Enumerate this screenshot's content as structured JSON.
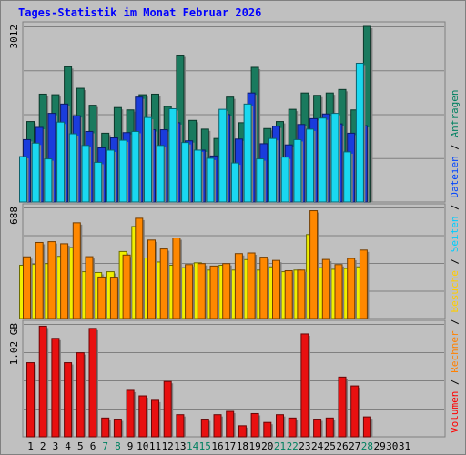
{
  "chart_data": {
    "type": "bar",
    "title": "Tages-Statistik im Monat Februar 2026",
    "categories": [
      "1",
      "2",
      "3",
      "4",
      "5",
      "6",
      "7",
      "8",
      "9",
      "10",
      "11",
      "12",
      "13",
      "14",
      "15",
      "16",
      "17",
      "18",
      "19",
      "20",
      "21",
      "22",
      "23",
      "24",
      "25",
      "26",
      "27",
      "28",
      "29",
      "30",
      "31"
    ],
    "weekend_days": [
      "7",
      "8",
      "14",
      "15",
      "21",
      "22",
      "28"
    ],
    "days_with_data": 28,
    "legend": {
      "separator": " / ",
      "items": [
        {
          "label": "Volumen",
          "color": "#ff0000"
        },
        {
          "label": "Rechner",
          "color": "#ff8000"
        },
        {
          "label": "Besuche",
          "color": "#ffcc00"
        },
        {
          "label": "Seiten",
          "color": "#00ccff"
        },
        {
          "label": "Dateien",
          "color": "#0044ff"
        },
        {
          "label": "Anfragen",
          "color": "#008060"
        }
      ]
    },
    "panels": [
      {
        "name": "requests",
        "ymax_label": "3012",
        "ymax": 3012,
        "series": [
          {
            "name": "Anfragen",
            "color": "#1a7a5e",
            "values": [
              1380,
              1850,
              1840,
              2320,
              1950,
              1660,
              1180,
              1620,
              1580,
              1840,
              1850,
              1640,
              2520,
              1400,
              1250,
              1090,
              1800,
              1360,
              2310,
              1260,
              1380,
              1590,
              1870,
              1830,
              1870,
              1930,
              1580,
              3012
            ]
          },
          {
            "name": "Dateien",
            "color": "#1a3cdc",
            "values": [
              1070,
              1280,
              1520,
              1680,
              1480,
              1210,
              930,
              1100,
              1190,
              1800,
              1240,
              1240,
              1360,
              1050,
              890,
              790,
              1500,
              1080,
              1870,
              1000,
              1300,
              980,
              1330,
              1430,
              1510,
              1340,
              1180,
              1310
            ]
          },
          {
            "name": "Seiten",
            "color": "#1ad8f0",
            "values": [
              780,
              1010,
              740,
              1370,
              1170,
              970,
              680,
              890,
              1060,
              1210,
              1450,
              970,
              1600,
              1020,
              890,
              750,
              1590,
              670,
              1680,
              740,
              1090,
              770,
              1070,
              1250,
              1440,
              1520,
              860,
              2380
            ]
          }
        ]
      },
      {
        "name": "visits",
        "ymax_label": "688",
        "ymax": 688,
        "series": [
          {
            "name": "Besuche",
            "color": "#f0f000",
            "values": [
              330,
              335,
              340,
              385,
              440,
              290,
              285,
              290,
              415,
              570,
              375,
              350,
              330,
              315,
              345,
              300,
              330,
              300,
              365,
              300,
              320,
              290,
              300,
              520,
              315,
              305,
              310,
              320
            ]
          },
          {
            "name": "Rechner",
            "color": "#ff8800",
            "values": [
              382,
              471,
              476,
              463,
              593,
              383,
              257,
              256,
              393,
              621,
              486,
              431,
              499,
              334,
              340,
              325,
              340,
              402,
              406,
              380,
              360,
              296,
              300,
              668,
              366,
              334,
              372,
              424
            ]
          }
        ]
      },
      {
        "name": "volume",
        "ymax_label": "1.02 GB",
        "ymax": 1.02,
        "series": [
          {
            "name": "Volumen",
            "color": "#e81010",
            "values": [
              0.67,
              1.0,
              0.89,
              0.67,
              0.76,
              0.98,
              0.17,
              0.16,
              0.42,
              0.37,
              0.33,
              0.5,
              0.2,
              0.0,
              0.16,
              0.2,
              0.23,
              0.1,
              0.21,
              0.13,
              0.2,
              0.17,
              0.93,
              0.16,
              0.17,
              0.54,
              0.46,
              0.18
            ]
          }
        ]
      }
    ],
    "grid": true
  }
}
